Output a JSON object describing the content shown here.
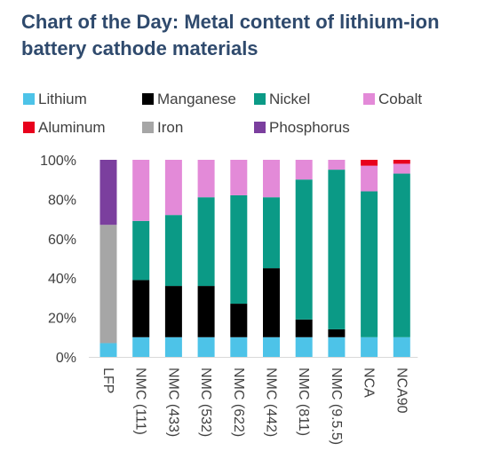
{
  "title": "Chart of the Day: Metal content of lithium-ion battery cathode materials",
  "colors": {
    "Lithium": "#4dc3e8",
    "Manganese": "#000000",
    "Nickel": "#0b9a86",
    "Cobalt": "#e38ad8",
    "Aluminum": "#e8001c",
    "Iron": "#a6a6a6",
    "Phosphorus": "#7b3f9e"
  },
  "legend": [
    {
      "label": "Lithium",
      "key": "Lithium"
    },
    {
      "label": "Manganese",
      "key": "Manganese"
    },
    {
      "label": "Nickel",
      "key": "Nickel"
    },
    {
      "label": "Cobalt",
      "key": "Cobalt"
    },
    {
      "label": "Aluminum",
      "key": "Aluminum"
    },
    {
      "label": "Iron",
      "key": "Iron"
    },
    {
      "label": "Phosphorus",
      "key": "Phosphorus"
    }
  ],
  "chart_data": {
    "type": "bar",
    "stacked": true,
    "legend_position": "top",
    "grid": false,
    "ylim": [
      0,
      100
    ],
    "yticks": [
      "0%",
      "20%",
      "40%",
      "60%",
      "80%",
      "100%"
    ],
    "categories": [
      "LFP",
      "NMC (111)",
      "NMC (433)",
      "NMC (532)",
      "NMC (622)",
      "NMC (442)",
      "NMC (811)",
      "NMC (9.5.5)",
      "NCA",
      "NCA90"
    ],
    "series": [
      {
        "name": "Lithium",
        "values": [
          7,
          10,
          10,
          10,
          10,
          10,
          10,
          10,
          10,
          10
        ]
      },
      {
        "name": "Manganese",
        "values": [
          0,
          29,
          26,
          26,
          17,
          35,
          9,
          4,
          0,
          0
        ]
      },
      {
        "name": "Nickel",
        "values": [
          0,
          30,
          36,
          45,
          55,
          36,
          71,
          81,
          74,
          83
        ]
      },
      {
        "name": "Cobalt",
        "values": [
          0,
          31,
          28,
          19,
          18,
          19,
          10,
          5,
          13,
          5
        ]
      },
      {
        "name": "Aluminum",
        "values": [
          0,
          0,
          0,
          0,
          0,
          0,
          0,
          0,
          3,
          2
        ]
      },
      {
        "name": "Iron",
        "values": [
          60,
          0,
          0,
          0,
          0,
          0,
          0,
          0,
          0,
          0
        ]
      },
      {
        "name": "Phosphorus",
        "values": [
          33,
          0,
          0,
          0,
          0,
          0,
          0,
          0,
          0,
          0
        ]
      }
    ]
  }
}
